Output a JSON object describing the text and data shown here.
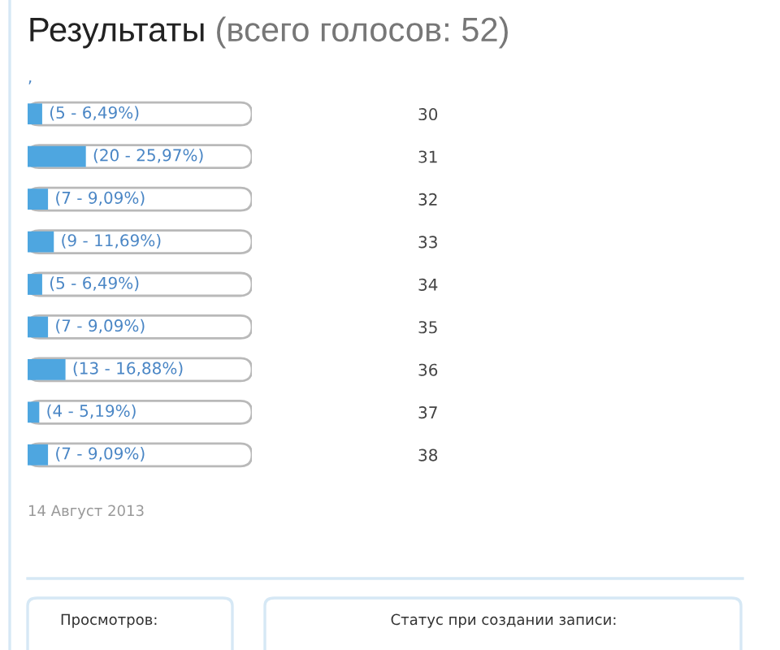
{
  "chart_data": {
    "type": "bar",
    "orientation": "horizontal",
    "title": "Результаты",
    "subtitle": "(всего голосов: 52)",
    "categories": [
      "30",
      "31",
      "32",
      "33",
      "34",
      "35",
      "36",
      "37",
      "38"
    ],
    "values": [
      5,
      20,
      7,
      9,
      5,
      7,
      13,
      4,
      7
    ],
    "value_labels": [
      "(5 - 6,49%)",
      "(20 - 25,97%)",
      "(7 - 9,09%)",
      "(9 - 11,69%)",
      "(5 - 6,49%)",
      "(7 - 9,09%)",
      "(13 - 16,88%)",
      "(4 - 5,19%)",
      "(7 - 9,09%)"
    ],
    "color": "#4ea6e0",
    "tick_labels": "y",
    "annotations": [
      ",",
      "14 Август 2013",
      "Просмотров:",
      "Статус при создании записи:"
    ]
  }
}
